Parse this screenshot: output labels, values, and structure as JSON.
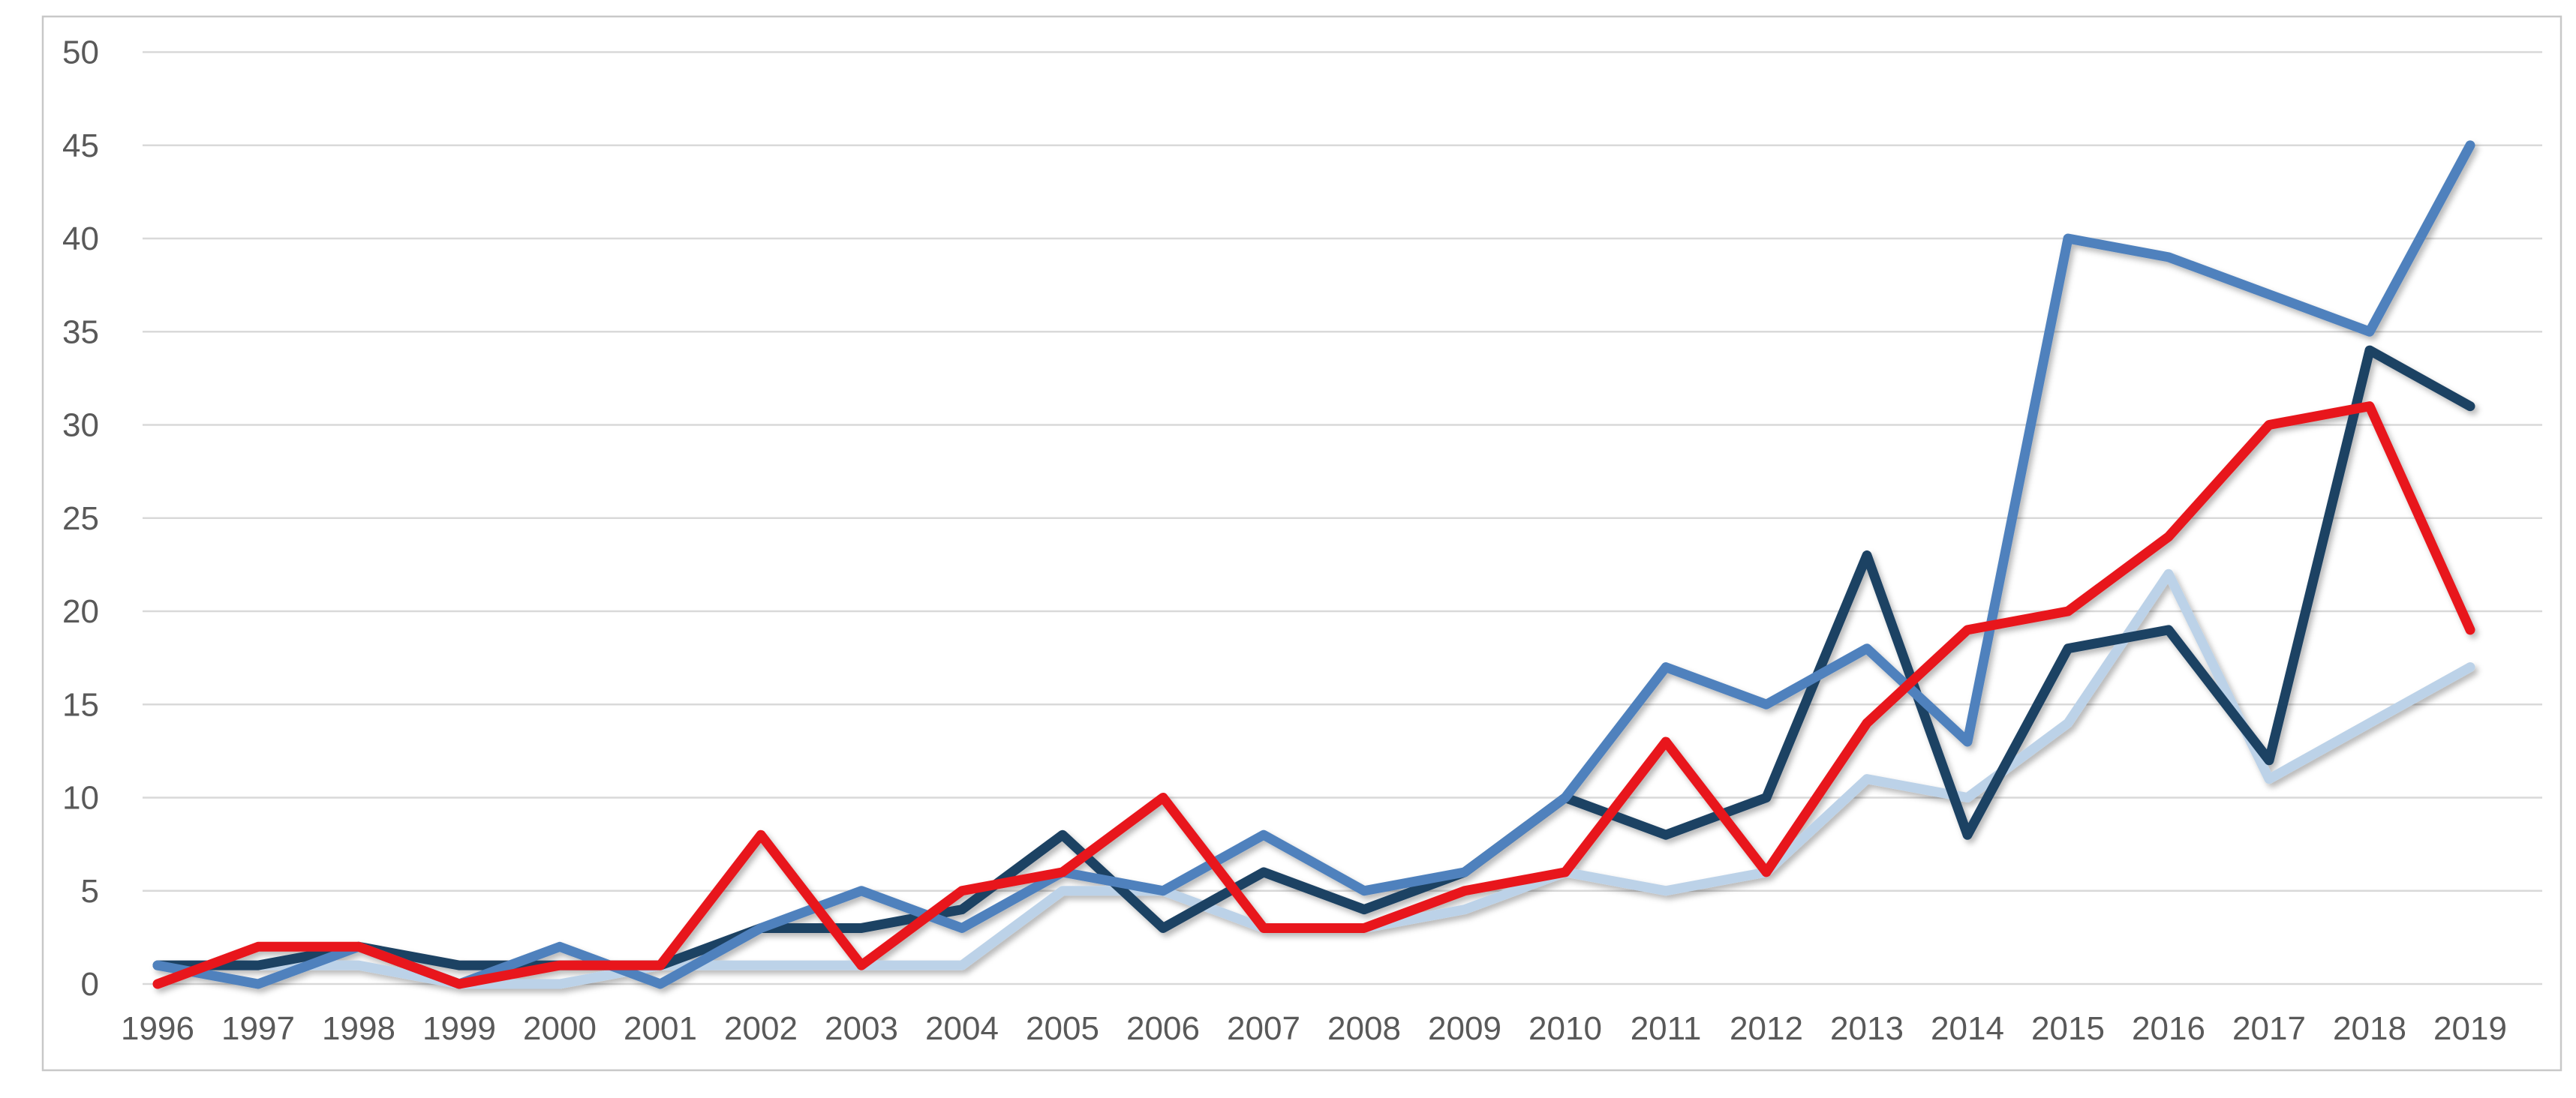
{
  "chart_data": {
    "type": "line",
    "title": "",
    "xlabel": "",
    "ylabel": "",
    "categories": [
      "1996",
      "1997",
      "1998",
      "1999",
      "2000",
      "2001",
      "2002",
      "2003",
      "2004",
      "2005",
      "2006",
      "2007",
      "2008",
      "2009",
      "2010",
      "2011",
      "2012",
      "2013",
      "2014",
      "2015",
      "2016",
      "2017",
      "2018",
      "2019"
    ],
    "series": [
      {
        "name": "light-blue-series",
        "color": "#BCD2E8",
        "values": [
          1,
          1,
          1,
          0,
          0,
          1,
          1,
          1,
          1,
          5,
          5,
          3,
          3,
          4,
          6,
          5,
          6,
          11,
          10,
          14,
          22,
          11,
          14,
          17
        ]
      },
      {
        "name": "dark-navy-series",
        "color": "#1F4264",
        "values": [
          1,
          1,
          2,
          1,
          1,
          1,
          3,
          3,
          4,
          8,
          3,
          6,
          4,
          6,
          10,
          8,
          10,
          23,
          8,
          18,
          19,
          12,
          34,
          31
        ]
      },
      {
        "name": "medium-blue-series",
        "color": "#4F81BD",
        "values": [
          1,
          0,
          2,
          0,
          2,
          0,
          3,
          5,
          3,
          6,
          5,
          8,
          5,
          6,
          10,
          17,
          15,
          18,
          13,
          40,
          39,
          37,
          35,
          45
        ]
      },
      {
        "name": "red-series",
        "color": "#E8191C",
        "values": [
          0,
          2,
          2,
          0,
          1,
          1,
          8,
          1,
          5,
          6,
          10,
          3,
          3,
          5,
          6,
          13,
          6,
          14,
          19,
          20,
          24,
          30,
          31,
          19
        ]
      }
    ],
    "ylim": [
      0,
      50
    ],
    "ytick_step": 5,
    "ytick_labels": [
      "0",
      "5",
      "10",
      "15",
      "20",
      "25",
      "30",
      "35",
      "40",
      "45",
      "50"
    ],
    "grid": "horizontal",
    "legend_position": "none",
    "axis_text_color": "#595959",
    "gridline_color": "#D9D9D9",
    "border_color": "#C8C8C8",
    "background_color": "#FFFFFF"
  }
}
